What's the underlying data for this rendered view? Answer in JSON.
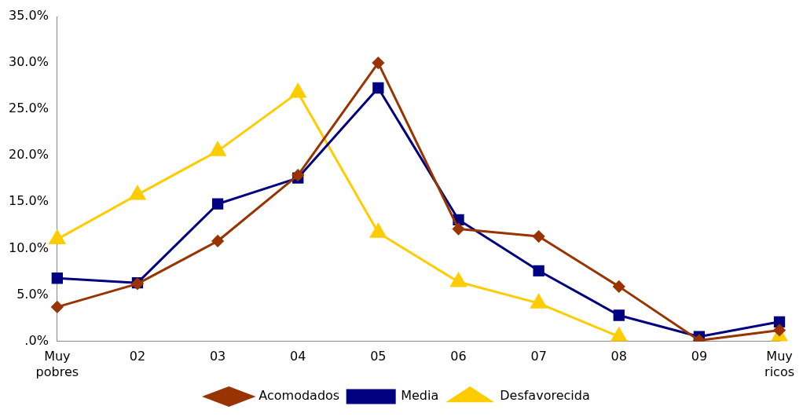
{
  "chart_data": {
    "type": "line",
    "categories": [
      "Muy pobres",
      "02",
      "03",
      "04",
      "05",
      "06",
      "07",
      "08",
      "09",
      "Muy ricos"
    ],
    "series": [
      {
        "name": "Acomodados",
        "color": "#993300",
        "marker": "diamond",
        "values": [
          3.7,
          6.2,
          10.8,
          17.9,
          30.0,
          12.1,
          11.3,
          5.9,
          0.1,
          1.2
        ]
      },
      {
        "name": "Media",
        "color": "#000080",
        "marker": "square",
        "values": [
          6.8,
          6.3,
          14.8,
          17.6,
          27.3,
          13.1,
          7.6,
          2.8,
          0.5,
          2.1
        ]
      },
      {
        "name": "Desfavorecida",
        "color": "#ffcc00",
        "marker": "triangle",
        "values": [
          11.0,
          15.8,
          20.5,
          26.8,
          11.7,
          6.4,
          4.1,
          0.5,
          null,
          0.5
        ]
      }
    ],
    "ylim": [
      0,
      35
    ],
    "yticks": [
      {
        "value": 0,
        "label": ".0%"
      },
      {
        "value": 5,
        "label": "5.0%"
      },
      {
        "value": 10,
        "label": "10.0%"
      },
      {
        "value": 15,
        "label": "15.0%"
      },
      {
        "value": 20,
        "label": "20.0%"
      },
      {
        "value": 25,
        "label": "25.0%"
      },
      {
        "value": 30,
        "label": "30.0%"
      },
      {
        "value": 35,
        "label": "35.0%"
      }
    ],
    "grid": false,
    "legend": "bottom",
    "line_style": "solid"
  }
}
